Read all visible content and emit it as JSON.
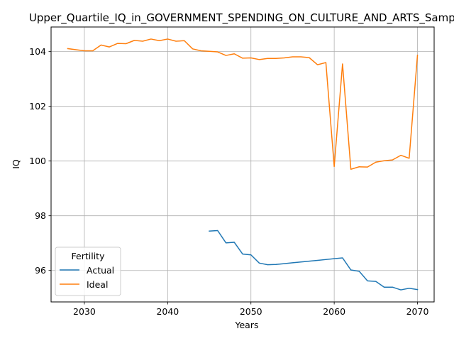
{
  "chart_data": {
    "type": "line",
    "title": "Upper_Quartile_IQ_in_GOVERNMENT_SPENDING_ON_CULTURE_AND_ARTS_Sample",
    "xlabel": "Years",
    "ylabel": "IQ",
    "xlim": [
      2026,
      2072
    ],
    "ylim": [
      94.85,
      104.9
    ],
    "xticks": [
      2030,
      2040,
      2050,
      2060,
      2070
    ],
    "yticks": [
      96,
      98,
      100,
      102,
      104
    ],
    "grid": true,
    "legend": {
      "title": "Fertility",
      "placement": "lower-left"
    },
    "series": [
      {
        "name": "Actual",
        "color": "#1f77b4",
        "x": [
          2045,
          2046,
          2047,
          2048,
          2049,
          2050,
          2051,
          2052,
          2053,
          2054,
          2055,
          2056,
          2057,
          2058,
          2059,
          2060,
          2061,
          2062,
          2063,
          2064,
          2065,
          2066,
          2067,
          2068,
          2069,
          2070
        ],
        "values": [
          97.44,
          97.46,
          97.01,
          97.03,
          96.6,
          96.57,
          96.27,
          96.21,
          96.22,
          96.25,
          96.28,
          96.31,
          96.34,
          96.37,
          96.4,
          96.43,
          96.46,
          96.02,
          95.97,
          95.62,
          95.6,
          95.39,
          95.39,
          95.29,
          95.35,
          95.3
        ]
      },
      {
        "name": "Ideal",
        "color": "#ff7f0e",
        "x": [
          2028,
          2029,
          2030,
          2031,
          2032,
          2033,
          2034,
          2035,
          2036,
          2037,
          2038,
          2039,
          2040,
          2041,
          2042,
          2043,
          2044,
          2045,
          2046,
          2047,
          2048,
          2049,
          2050,
          2051,
          2052,
          2053,
          2054,
          2055,
          2056,
          2057,
          2058,
          2059,
          2060,
          2061,
          2062,
          2063,
          2064,
          2065,
          2066,
          2067,
          2068,
          2069,
          2070
        ],
        "values": [
          104.11,
          104.07,
          104.03,
          104.03,
          104.24,
          104.17,
          104.3,
          104.29,
          104.41,
          104.38,
          104.46,
          104.4,
          104.46,
          104.38,
          104.4,
          104.1,
          104.03,
          104.01,
          103.99,
          103.86,
          103.92,
          103.76,
          103.77,
          103.71,
          103.75,
          103.75,
          103.77,
          103.81,
          103.81,
          103.78,
          103.52,
          103.6,
          99.8,
          103.55,
          99.7,
          99.79,
          99.78,
          99.96,
          100.01,
          100.04,
          100.21,
          100.1,
          103.87
        ]
      }
    ]
  }
}
